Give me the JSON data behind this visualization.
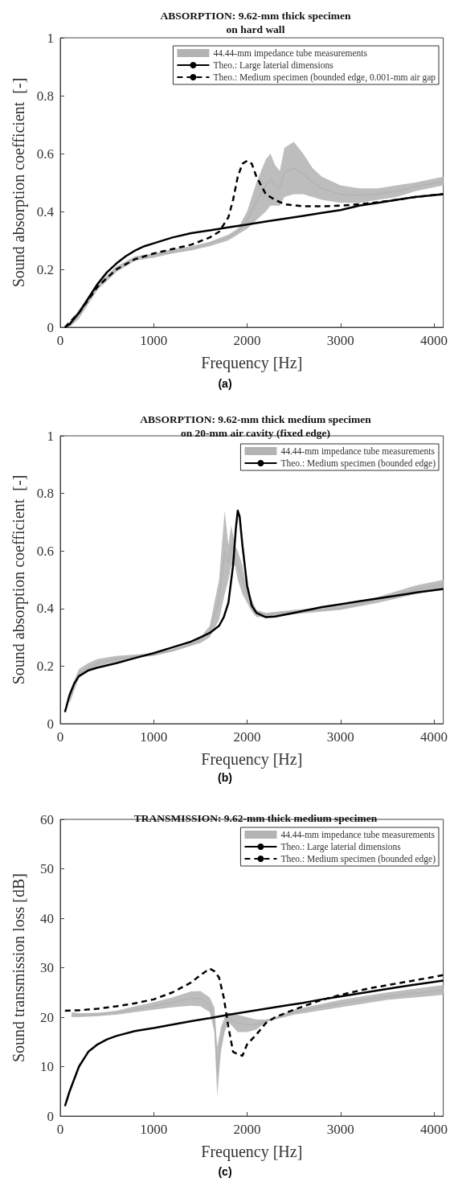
{
  "chart_data": [
    {
      "type": "line",
      "title": "ABSORPTION: 9.62-mm thick specimen\non hard wall",
      "xlabel": "Frequency [Hz]",
      "ylabel": "Sound absorption coefficient  [-]",
      "xlim": [
        0,
        4100
      ],
      "xticks": [
        0,
        1000,
        2000,
        3000,
        4000
      ],
      "ylim": [
        0,
        1
      ],
      "yticks": [
        0,
        0.2,
        0.4,
        0.6,
        0.8,
        1
      ],
      "grid": false,
      "legend": "top right",
      "marker": "none",
      "annotations": [
        "(a)"
      ],
      "series": [
        {
          "name": "44.44-mm impedance tube measurements",
          "color": "#b3b3b3",
          "x": [
            100,
            200,
            400,
            600,
            800,
            1000,
            1200,
            1400,
            1600,
            1800,
            1900,
            2000,
            2100,
            2200,
            2250,
            2300,
            2350,
            2400,
            2500,
            2600,
            2700,
            2800,
            3000,
            3200,
            3400,
            3600,
            3800,
            4100
          ],
          "lower": [
            0,
            0.03,
            0.13,
            0.19,
            0.23,
            0.24,
            0.255,
            0.265,
            0.28,
            0.3,
            0.32,
            0.34,
            0.37,
            0.4,
            0.42,
            0.42,
            0.42,
            0.45,
            0.46,
            0.46,
            0.45,
            0.44,
            0.43,
            0.43,
            0.44,
            0.45,
            0.47,
            0.49
          ],
          "upper": [
            0.02,
            0.06,
            0.15,
            0.21,
            0.245,
            0.255,
            0.27,
            0.28,
            0.295,
            0.32,
            0.34,
            0.4,
            0.5,
            0.58,
            0.6,
            0.56,
            0.54,
            0.62,
            0.64,
            0.6,
            0.55,
            0.52,
            0.49,
            0.48,
            0.48,
            0.49,
            0.5,
            0.52
          ],
          "values": [
            0.01,
            0.045,
            0.14,
            0.2,
            0.24,
            0.25,
            0.26,
            0.27,
            0.29,
            0.31,
            0.33,
            0.37,
            0.435,
            0.49,
            0.51,
            0.49,
            0.48,
            0.535,
            0.55,
            0.53,
            0.5,
            0.48,
            0.46,
            0.455,
            0.46,
            0.47,
            0.485,
            0.505
          ]
        },
        {
          "name": "Theo.: Large laterial dimensions",
          "color": "#000000",
          "line_style": "solid",
          "x": [
            50,
            100,
            200,
            300,
            400,
            500,
            600,
            700,
            800,
            900,
            1000,
            1200,
            1400,
            1600,
            1800,
            2000,
            2200,
            2400,
            2600,
            2800,
            3000,
            3200,
            3400,
            3600,
            3800,
            4100
          ],
          "values": [
            0,
            0.01,
            0.05,
            0.1,
            0.15,
            0.19,
            0.22,
            0.245,
            0.265,
            0.28,
            0.29,
            0.31,
            0.325,
            0.335,
            0.345,
            0.355,
            0.365,
            0.375,
            0.385,
            0.395,
            0.405,
            0.42,
            0.43,
            0.44,
            0.45,
            0.46
          ]
        },
        {
          "name": "Theo.: Medium specimen (bounded edge, 0.001-mm air gap",
          "color": "#000000",
          "line_style": "dashed",
          "x": [
            50,
            200,
            400,
            600,
            800,
            1000,
            1200,
            1400,
            1600,
            1700,
            1800,
            1850,
            1900,
            1950,
            2000,
            2050,
            2100,
            2150,
            2200,
            2300,
            2400,
            2600,
            2800,
            3000,
            3200,
            3400,
            3600,
            3800,
            4100
          ],
          "values": [
            0,
            0.05,
            0.14,
            0.2,
            0.235,
            0.255,
            0.27,
            0.285,
            0.31,
            0.33,
            0.38,
            0.44,
            0.52,
            0.565,
            0.575,
            0.565,
            0.52,
            0.49,
            0.46,
            0.44,
            0.425,
            0.418,
            0.418,
            0.42,
            0.425,
            0.432,
            0.44,
            0.45,
            0.46
          ]
        }
      ]
    },
    {
      "type": "line",
      "title": "ABSORPTION: 9.62-mm thick medium specimen\non 20-mm air cavity (fixed edge)",
      "xlabel": "Frequency [Hz]",
      "ylabel": "Sound absorption coefficient  [-]",
      "xlim": [
        0,
        4100
      ],
      "xticks": [
        0,
        1000,
        2000,
        3000,
        4000
      ],
      "ylim": [
        0,
        1
      ],
      "yticks": [
        0,
        0.2,
        0.4,
        0.6,
        0.8,
        1
      ],
      "grid": false,
      "legend": "top right",
      "marker": "none",
      "annotations": [
        "(b)"
      ],
      "series": [
        {
          "name": "44.44-mm impedance tube measurements",
          "color": "#b3b3b3",
          "x": [
            100,
            200,
            300,
            400,
            600,
            800,
            1000,
            1200,
            1400,
            1500,
            1600,
            1700,
            1760,
            1800,
            1830,
            1870,
            1900,
            1950,
            2000,
            2050,
            2100,
            2200,
            2500,
            3000,
            3400,
            3800,
            4100
          ],
          "lower": [
            0.07,
            0.16,
            0.18,
            0.2,
            0.215,
            0.23,
            0.235,
            0.25,
            0.27,
            0.28,
            0.3,
            0.36,
            0.45,
            0.5,
            0.55,
            0.55,
            0.5,
            0.45,
            0.42,
            0.39,
            0.37,
            0.37,
            0.38,
            0.395,
            0.42,
            0.45,
            0.47
          ],
          "upper": [
            0.11,
            0.19,
            0.21,
            0.225,
            0.235,
            0.24,
            0.245,
            0.26,
            0.28,
            0.3,
            0.34,
            0.5,
            0.74,
            0.62,
            0.69,
            0.62,
            0.6,
            0.55,
            0.47,
            0.43,
            0.395,
            0.385,
            0.395,
            0.41,
            0.44,
            0.48,
            0.5
          ],
          "values": [
            0.09,
            0.175,
            0.195,
            0.21,
            0.225,
            0.235,
            0.24,
            0.255,
            0.275,
            0.29,
            0.32,
            0.43,
            0.595,
            0.56,
            0.62,
            0.585,
            0.55,
            0.5,
            0.445,
            0.41,
            0.38,
            0.38,
            0.39,
            0.4,
            0.43,
            0.465,
            0.485
          ]
        },
        {
          "name": "Theo.: Medium specimen (bounded edge)",
          "color": "#000000",
          "line_style": "solid",
          "x": [
            50,
            100,
            150,
            200,
            300,
            400,
            600,
            800,
            1000,
            1200,
            1400,
            1500,
            1600,
            1700,
            1750,
            1800,
            1850,
            1880,
            1900,
            1920,
            1950,
            2000,
            2050,
            2100,
            2200,
            2300,
            2500,
            2800,
            3000,
            3200,
            3500,
            3800,
            4100
          ],
          "values": [
            0.04,
            0.1,
            0.14,
            0.165,
            0.185,
            0.195,
            0.21,
            0.228,
            0.245,
            0.265,
            0.285,
            0.3,
            0.315,
            0.34,
            0.37,
            0.42,
            0.55,
            0.68,
            0.74,
            0.72,
            0.62,
            0.48,
            0.41,
            0.385,
            0.37,
            0.372,
            0.385,
            0.405,
            0.415,
            0.425,
            0.44,
            0.455,
            0.468
          ]
        }
      ]
    },
    {
      "type": "line",
      "title": "TRANSMISSION: 9.62-mm thick medium specimen",
      "xlabel": "Frequency [Hz]",
      "ylabel": "Sound transmission loss [dB]",
      "xlim": [
        0,
        4100
      ],
      "xticks": [
        0,
        1000,
        2000,
        3000,
        4000
      ],
      "ylim": [
        0,
        60
      ],
      "yticks": [
        0,
        10,
        20,
        30,
        40,
        50,
        60
      ],
      "grid": false,
      "legend": "top right",
      "marker": "none",
      "annotations": [
        "(c)"
      ],
      "series": [
        {
          "name": "44.44-mm impedance tube measurements",
          "color": "#b3b3b3",
          "x": [
            120,
            200,
            400,
            600,
            800,
            1000,
            1200,
            1400,
            1500,
            1600,
            1650,
            1680,
            1720,
            1760,
            1800,
            1850,
            1900,
            2000,
            2100,
            2200,
            2300,
            2500,
            3000,
            3500,
            4100
          ],
          "lower": [
            20,
            20,
            20.2,
            20.5,
            21,
            21.5,
            22,
            22.3,
            22.2,
            21,
            17,
            4,
            13,
            17,
            19,
            18,
            17,
            17,
            17.5,
            19,
            19.5,
            20.5,
            22,
            23.5,
            24.5
          ],
          "upper": [
            21,
            20.8,
            20.9,
            21.3,
            22.2,
            23,
            24,
            25.2,
            25.3,
            24,
            22,
            14,
            18,
            20,
            21,
            20.5,
            20.5,
            20,
            19.5,
            19.5,
            20,
            21.5,
            23.5,
            25,
            26.5
          ],
          "values": [
            20.5,
            20.4,
            20.5,
            20.9,
            21.6,
            22.2,
            23,
            23.8,
            23.8,
            22.5,
            19.5,
            9,
            15.5,
            18.5,
            20,
            19.2,
            18.8,
            18.5,
            18.5,
            19.2,
            19.8,
            21,
            22.8,
            24.2,
            25.5
          ]
        },
        {
          "name": "Theo.: Large laterial dimensions",
          "color": "#000000",
          "line_style": "solid",
          "x": [
            50,
            100,
            200,
            300,
            400,
            500,
            600,
            800,
            1000,
            1200,
            1400,
            1600,
            1800,
            2000,
            2200,
            2400,
            2600,
            2800,
            3000,
            3200,
            3400,
            3600,
            3800,
            4100
          ],
          "values": [
            2,
            5,
            10,
            13,
            14.5,
            15.5,
            16.2,
            17.2,
            17.8,
            18.5,
            19.2,
            19.8,
            20.5,
            21.1,
            21.7,
            22.3,
            22.9,
            23.6,
            24.2,
            24.8,
            25.4,
            26,
            26.6,
            27.4
          ]
        },
        {
          "name": "Theo.: Medium specimen (bounded edge)",
          "color": "#000000",
          "line_style": "dashed",
          "x": [
            50,
            200,
            400,
            600,
            800,
            1000,
            1200,
            1400,
            1500,
            1600,
            1650,
            1700,
            1750,
            1800,
            1850,
            1900,
            1950,
            2000,
            2100,
            2200,
            2300,
            2500,
            2800,
            3000,
            3300,
            3600,
            3900,
            4100
          ],
          "values": [
            21.3,
            21.4,
            21.7,
            22.2,
            22.8,
            23.6,
            25,
            27,
            28.5,
            29.8,
            29.3,
            28,
            24,
            18,
            13,
            12.5,
            12.2,
            14.5,
            16.5,
            18.8,
            20,
            21.5,
            23.5,
            24.5,
            25.8,
            26.8,
            27.8,
            28.5
          ]
        }
      ]
    }
  ]
}
